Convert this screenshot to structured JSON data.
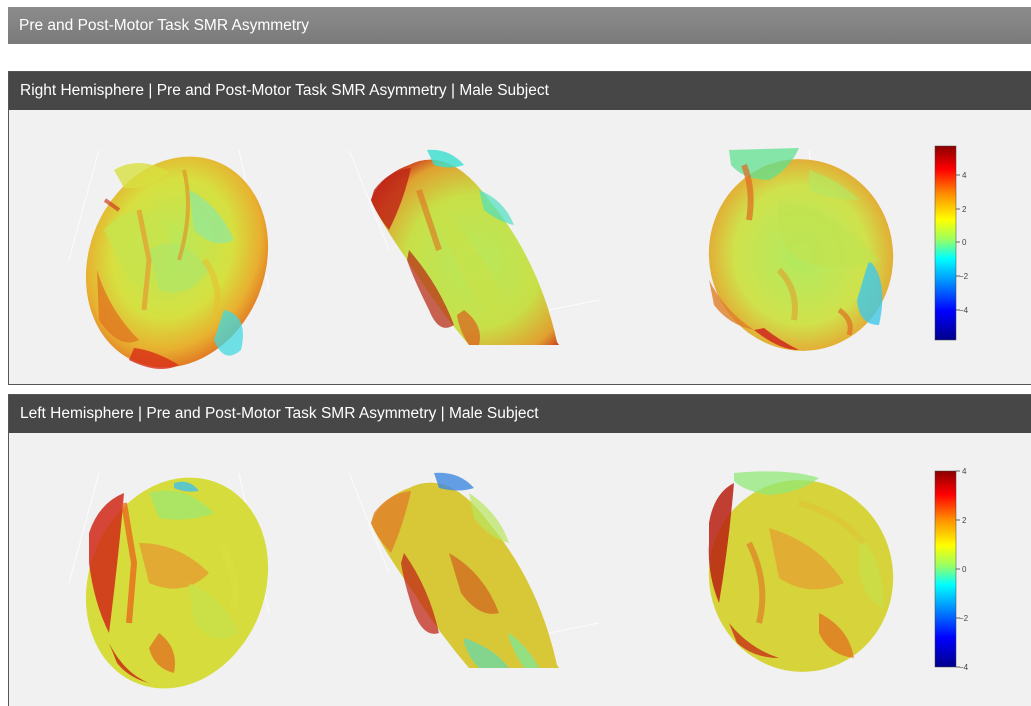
{
  "page": {
    "title": "Pre and Post-Motor Task SMR Asymmetry"
  },
  "panels": [
    {
      "title": "Right Hemisphere | Pre and Post-Motor Task SMR Asymmetry | Male Subject",
      "colorbar": {
        "ticks": [
          "4",
          "2",
          "0",
          "−2",
          "−4"
        ],
        "range": [
          -5.8,
          5.8
        ]
      },
      "views": [
        "lateral-view",
        "dorsal-view",
        "medial-view"
      ]
    },
    {
      "title": "Left Hemisphere | Pre and Post-Motor Task SMR Asymmetry | Male Subject",
      "colorbar": {
        "ticks": [
          "4",
          "2",
          "0",
          "−2",
          "−4"
        ],
        "range": [
          -4,
          4
        ]
      },
      "views": [
        "lateral-view",
        "dorsal-view",
        "medial-view"
      ]
    }
  ],
  "colorscale": [
    "#00008b",
    "#0000ff",
    "#0080ff",
    "#00ffff",
    "#80ff80",
    "#ffff00",
    "#ff8000",
    "#ff0000",
    "#8b0000"
  ]
}
